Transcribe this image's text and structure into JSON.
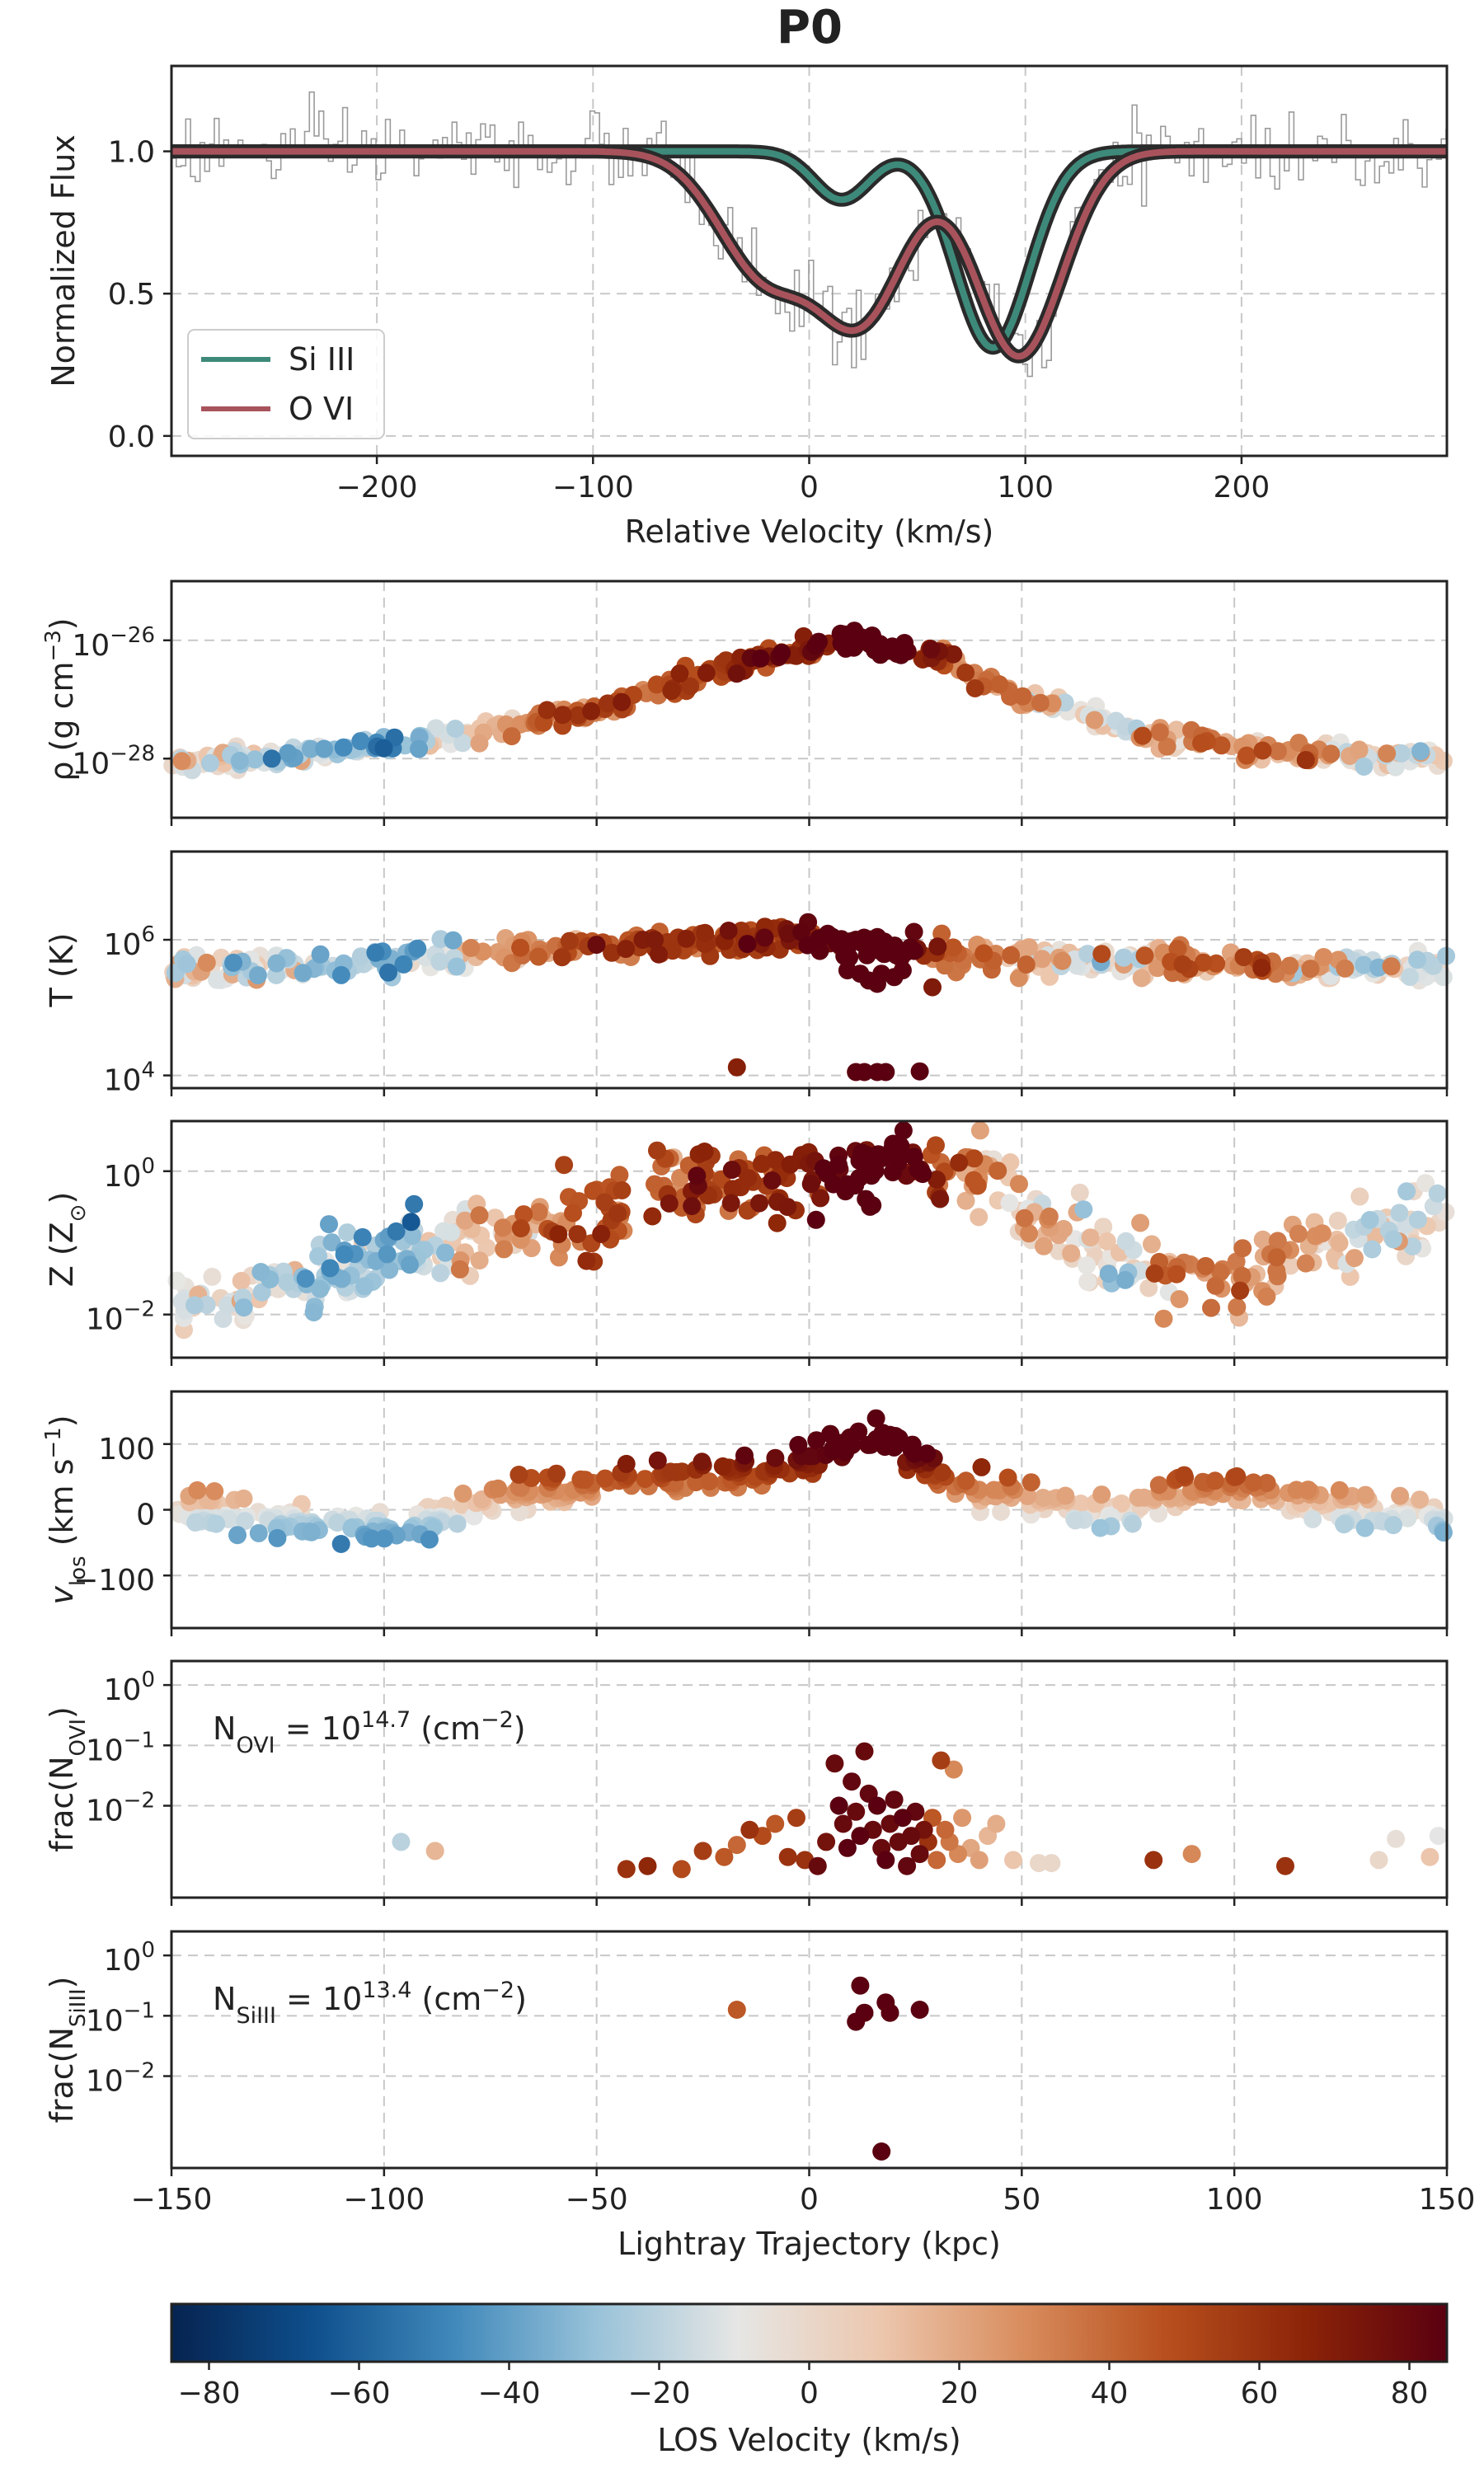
{
  "title": "P0",
  "chart_data": [
    {
      "id": "spectrum",
      "type": "line",
      "xlabel": "Relative Velocity (km/s)",
      "ylabel": "Normalized Flux",
      "xlim": [
        -295,
        295
      ],
      "ylim": [
        -0.07,
        1.3
      ],
      "xticks": [
        -200,
        -100,
        0,
        100,
        200
      ],
      "xtick_labels": [
        "−200",
        "−100",
        "0",
        "100",
        "200"
      ],
      "yticks": [
        0.0,
        0.5,
        1.0
      ],
      "ytick_labels": [
        "0.0",
        "0.5",
        "1.0"
      ],
      "grid": true,
      "legend_position": "lower-left",
      "series": [
        {
          "name": "Si III",
          "color": "#3e8a7a",
          "components": [
            {
              "center": 15,
              "depth": 0.17,
              "width": 13
            },
            {
              "center": 85,
              "depth": 0.69,
              "width": 17
            }
          ]
        },
        {
          "name": "O VI",
          "color": "#a8535c",
          "components": [
            {
              "center": -20,
              "depth": 0.42,
              "width": 22
            },
            {
              "center": 22,
              "depth": 0.6,
              "width": 22
            },
            {
              "center": 97,
              "depth": 0.72,
              "width": 20
            }
          ]
        }
      ],
      "observed_spectrum": {
        "color": "#9a9a9a",
        "step_km_s": 2.2,
        "noise": 0.07
      }
    },
    {
      "id": "density",
      "type": "scatter",
      "ylabel_base": "ρ (g cm",
      "ylabel_exp": "−3",
      "ylabel_close": ")",
      "yscale": "log",
      "ylim": [
        1e-29,
        1e-25
      ],
      "yticks": [
        1e-28,
        1e-26
      ],
      "ytick_mantissa": [
        "10",
        "10"
      ],
      "ytick_exp": [
        "−28",
        "−26"
      ],
      "trend": [
        [
          -150,
          -28.1
        ],
        [
          -100,
          -27.8
        ],
        [
          -50,
          -27.2
        ],
        [
          -25,
          -26.6
        ],
        [
          0,
          -26.1
        ],
        [
          12,
          -26.0
        ],
        [
          30,
          -26.3
        ],
        [
          50,
          -27.0
        ],
        [
          80,
          -27.6
        ],
        [
          110,
          -27.9
        ],
        [
          150,
          -28.0
        ]
      ],
      "spread": 0.08
    },
    {
      "id": "temperature",
      "type": "scatter",
      "ylabel": "T (K)",
      "yscale": "log",
      "ylim": [
        6500,
        20000000
      ],
      "yticks": [
        10000,
        1000000
      ],
      "ytick_mantissa": [
        "10",
        "10"
      ],
      "ytick_exp": [
        "4",
        "6"
      ],
      "trend": [
        [
          -150,
          5.55
        ],
        [
          -100,
          5.7
        ],
        [
          -50,
          5.9
        ],
        [
          -20,
          6.0
        ],
        [
          0,
          6.05
        ],
        [
          10,
          5.95
        ],
        [
          25,
          5.85
        ],
        [
          40,
          5.75
        ],
        [
          60,
          5.72
        ],
        [
          100,
          5.65
        ],
        [
          150,
          5.55
        ]
      ],
      "spread": 0.1,
      "outliers": [
        [
          -17,
          4.12
        ],
        [
          11,
          4.05
        ],
        [
          13,
          4.05
        ],
        [
          16,
          4.05
        ],
        [
          18,
          4.05
        ],
        [
          26,
          4.06
        ],
        [
          29,
          5.3
        ],
        [
          12,
          5.5
        ],
        [
          14,
          5.4
        ],
        [
          16,
          5.35
        ],
        [
          17,
          5.5
        ],
        [
          20,
          5.45
        ],
        [
          9,
          5.55
        ],
        [
          22,
          5.55
        ]
      ]
    },
    {
      "id": "metallicity",
      "type": "scatter",
      "ylabel_base": "Z (Z",
      "ylabel_sub": "⊙",
      "ylabel_close": ")",
      "yscale": "log",
      "ylim": [
        0.0025,
        5
      ],
      "yticks": [
        0.01,
        1
      ],
      "ytick_mantissa": [
        "10",
        "10"
      ],
      "ytick_exp": [
        "−2",
        "0"
      ],
      "trend": [
        [
          -150,
          -1.9
        ],
        [
          -125,
          -1.6
        ],
        [
          -105,
          -1.3
        ],
        [
          -90,
          -1.0
        ],
        [
          -70,
          -0.8
        ],
        [
          -50,
          -0.7
        ],
        [
          -40,
          -0.3
        ],
        [
          -20,
          -0.2
        ],
        [
          0,
          -0.1
        ],
        [
          20,
          0.05
        ],
        [
          40,
          0.0
        ],
        [
          55,
          -0.6
        ],
        [
          70,
          -1.2
        ],
        [
          85,
          -1.4
        ],
        [
          100,
          -1.5
        ],
        [
          115,
          -1.1
        ],
        [
          135,
          -0.8
        ],
        [
          150,
          -0.6
        ]
      ],
      "spread": 0.25
    },
    {
      "id": "vlos",
      "type": "scatter",
      "ylabel_base": "v",
      "ylabel_sub": "los",
      "ylabel_mid": " (km s",
      "ylabel_exp": "−1",
      "ylabel_close": ")",
      "yscale": "linear",
      "ylim": [
        -180,
        180
      ],
      "yticks": [
        -100,
        0,
        100
      ],
      "ytick_labels": [
        "−100",
        "0",
        "100"
      ],
      "trend": [
        [
          -150,
          0
        ],
        [
          -130,
          -10
        ],
        [
          -110,
          -25
        ],
        [
          -95,
          -35
        ],
        [
          -80,
          10
        ],
        [
          -60,
          35
        ],
        [
          -40,
          50
        ],
        [
          -20,
          50
        ],
        [
          0,
          70
        ],
        [
          10,
          100
        ],
        [
          20,
          110
        ],
        [
          30,
          50
        ],
        [
          45,
          20
        ],
        [
          60,
          5
        ],
        [
          75,
          -10
        ],
        [
          80,
          20
        ],
        [
          95,
          30
        ],
        [
          110,
          30
        ],
        [
          125,
          0
        ],
        [
          150,
          -10
        ]
      ],
      "spread": 12
    },
    {
      "id": "frac_ovi",
      "type": "scatter",
      "ylabel_base": "frac(N",
      "ylabel_sub": "OVI",
      "ylabel_close": ")",
      "yscale": "log",
      "ylim": [
        0.0003,
        2.5
      ],
      "yticks": [
        0.01,
        0.1,
        1
      ],
      "ytick_mantissa": [
        "10",
        "10",
        "10"
      ],
      "ytick_exp": [
        "−2",
        "−1",
        "0"
      ],
      "annotation_base": "N",
      "annotation_sub": "OVI",
      "annotation_mid": " = 10",
      "annotation_exp": "14.7",
      "annotation_tail": " (cm",
      "annotation_tail_exp": "−2",
      "annotation_close": ")",
      "points": [
        [
          -96,
          -2.6,
          -20
        ],
        [
          -88,
          -2.75,
          15
        ],
        [
          -43,
          -3.05,
          60
        ],
        [
          -38,
          -3.0,
          65
        ],
        [
          -30,
          -3.05,
          50
        ],
        [
          -25,
          -2.75,
          55
        ],
        [
          -20,
          -2.85,
          45
        ],
        [
          -17,
          -2.65,
          40
        ],
        [
          -14,
          -2.4,
          60
        ],
        [
          -11,
          -2.5,
          50
        ],
        [
          -8,
          -2.3,
          45
        ],
        [
          -5,
          -2.85,
          60
        ],
        [
          -3,
          -2.2,
          55
        ],
        [
          -1,
          -2.9,
          60
        ],
        [
          2,
          -3.0,
          80
        ],
        [
          4,
          -2.6,
          75
        ],
        [
          6,
          -1.3,
          80
        ],
        [
          7,
          -2.0,
          85
        ],
        [
          8,
          -2.3,
          80
        ],
        [
          9,
          -2.7,
          85
        ],
        [
          10,
          -1.6,
          82
        ],
        [
          11,
          -2.1,
          80
        ],
        [
          12,
          -2.5,
          85
        ],
        [
          13,
          -1.1,
          80
        ],
        [
          14,
          -1.8,
          82
        ],
        [
          15,
          -2.4,
          80
        ],
        [
          16,
          -2.0,
          85
        ],
        [
          17,
          -2.7,
          80
        ],
        [
          18,
          -2.9,
          85
        ],
        [
          19,
          -2.3,
          80
        ],
        [
          20,
          -1.9,
          82
        ],
        [
          21,
          -2.6,
          80
        ],
        [
          22,
          -2.2,
          85
        ],
        [
          23,
          -3.0,
          82
        ],
        [
          24,
          -2.5,
          80
        ],
        [
          25,
          -2.1,
          82
        ],
        [
          26,
          -2.8,
          80
        ],
        [
          27,
          -2.4,
          75
        ],
        [
          28,
          -2.6,
          60
        ],
        [
          29,
          -2.2,
          45
        ],
        [
          30,
          -2.9,
          40
        ],
        [
          31,
          -1.25,
          55
        ],
        [
          32,
          -2.4,
          40
        ],
        [
          33,
          -2.6,
          35
        ],
        [
          34,
          -1.4,
          30
        ],
        [
          35,
          -2.8,
          30
        ],
        [
          36,
          -2.2,
          25
        ],
        [
          38,
          -2.7,
          20
        ],
        [
          40,
          -2.9,
          22
        ],
        [
          42,
          -2.5,
          15
        ],
        [
          44,
          -2.3,
          18
        ],
        [
          48,
          -2.9,
          10
        ],
        [
          54,
          -2.95,
          0
        ],
        [
          57,
          -2.95,
          0
        ],
        [
          81,
          -2.9,
          60
        ],
        [
          90,
          -2.8,
          30
        ],
        [
          112,
          -3.0,
          60
        ],
        [
          134,
          -2.9,
          0
        ],
        [
          138,
          -2.55,
          -5
        ],
        [
          146,
          -2.85,
          10
        ],
        [
          148,
          -2.5,
          -10
        ]
      ]
    },
    {
      "id": "frac_siiii",
      "type": "scatter",
      "ylabel_base": "frac(N",
      "ylabel_sub": "SiIII",
      "ylabel_close": ")",
      "yscale": "log",
      "ylim": [
        0.0003,
        2.5
      ],
      "yticks": [
        0.01,
        0.1,
        1
      ],
      "ytick_mantissa": [
        "10",
        "10",
        "10"
      ],
      "ytick_exp": [
        "−2",
        "−1",
        "0"
      ],
      "annotation_base": "N",
      "annotation_sub": "SiIII",
      "annotation_mid": " = 10",
      "annotation_exp": "13.4",
      "annotation_tail": " (cm",
      "annotation_tail_exp": "−2",
      "annotation_close": ")",
      "xlabel": "Lightray Trajectory (kpc)",
      "points": [
        [
          -17,
          -0.9,
          45
        ],
        [
          12,
          -0.5,
          85
        ],
        [
          13,
          -0.95,
          85
        ],
        [
          11,
          -1.1,
          85
        ],
        [
          18,
          -0.78,
          85
        ],
        [
          19,
          -0.95,
          85
        ],
        [
          26,
          -0.9,
          85
        ],
        [
          17,
          -3.25,
          85
        ]
      ]
    }
  ],
  "trajectory_axis": {
    "xlim": [
      -150,
      150
    ],
    "xticks": [
      -150,
      -100,
      -50,
      0,
      50,
      100,
      150
    ],
    "xtick_labels": [
      "−150",
      "−100",
      "−50",
      "0",
      "50",
      "100",
      "150"
    ]
  },
  "colorbar": {
    "label": "LOS Velocity (km/s)",
    "range": [
      -85,
      85
    ],
    "ticks": [
      -80,
      -60,
      -40,
      -20,
      0,
      20,
      40,
      60,
      80
    ],
    "tick_labels": [
      "−80",
      "−60",
      "−40",
      "−20",
      "0",
      "20",
      "40",
      "60",
      "80"
    ],
    "colormap": "RdBu_r",
    "stops": [
      "#062350",
      "#0e4f8c",
      "#4189bb",
      "#98c2d9",
      "#e6e6e4",
      "#ecc7ae",
      "#d98d5e",
      "#b8501e",
      "#8c2408",
      "#5a0010"
    ]
  }
}
